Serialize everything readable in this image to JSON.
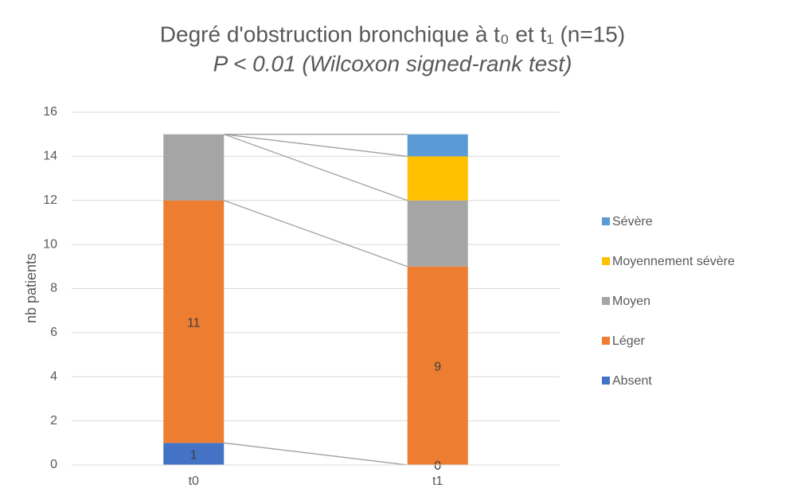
{
  "chart_data": {
    "type": "stacked_bar",
    "title": "Degré d'obstruction bronchique à t₀ et t₁ (n=15)",
    "subtitle": "P < 0.01 (Wilcoxon signed-rank test)",
    "y_label": "nb patients",
    "categories": [
      "t0",
      "t1"
    ],
    "series": [
      {
        "name": "Absent",
        "color": "#4472c4",
        "values": [
          1,
          0
        ],
        "data_labels": true
      },
      {
        "name": "Léger",
        "color": "#ed7d31",
        "values": [
          11,
          9
        ],
        "data_labels": true
      },
      {
        "name": "Moyen",
        "color": "#a5a5a5",
        "values": [
          3,
          3
        ]
      },
      {
        "name": "Moyennement sévère",
        "color": "#ffc000",
        "values": [
          0,
          2
        ]
      },
      {
        "name": "Sévère",
        "color": "#5b9bd5",
        "values": [
          0,
          1
        ]
      }
    ],
    "ylim": [
      0,
      16
    ],
    "yticks": [
      0,
      2,
      4,
      6,
      8,
      10,
      12,
      14,
      16
    ],
    "grid": true,
    "series_lines": true,
    "legend": "right"
  }
}
